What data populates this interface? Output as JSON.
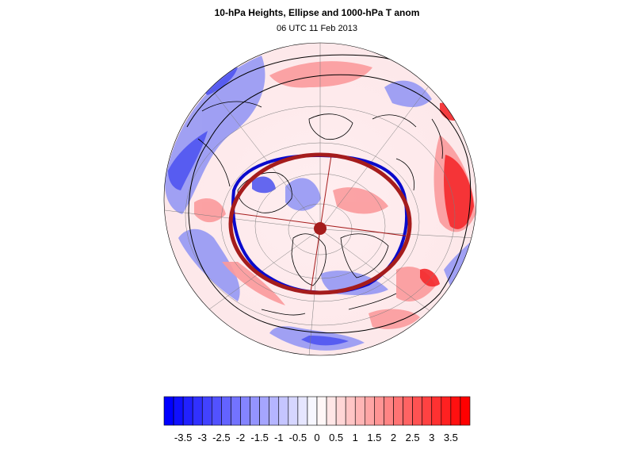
{
  "title": "10-hPa Heights, Ellipse and 1000-hPa T anom",
  "subtitle": "06 UTC 11 Feb 2013",
  "colorbar": {
    "tick_labels": [
      "-3.5",
      "-3",
      "-2.5",
      "-2",
      "-1.5",
      "-1",
      "-0.5",
      "0",
      "0.5",
      "1",
      "1.5",
      "2",
      "2.5",
      "3",
      "3.5"
    ],
    "min": -4,
    "max": 4,
    "step": 0.25,
    "neg_color": "#0000ff",
    "pos_color": "#ff0000"
  },
  "colors": {
    "ellipse": "#a51c1c",
    "height_contour": "#0a0acc",
    "coastline": "#000000",
    "graticule": "#777777"
  }
}
